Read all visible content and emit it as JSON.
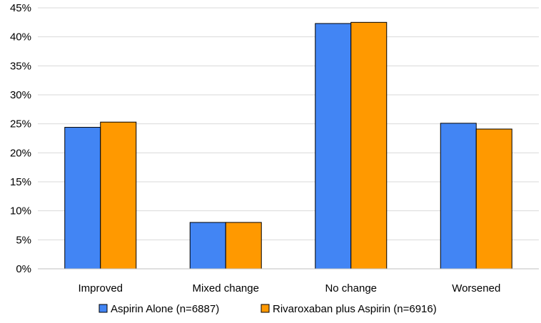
{
  "chart_data": {
    "type": "bar",
    "categories": [
      "Improved",
      "Mixed change",
      "No change",
      "Worsened"
    ],
    "series": [
      {
        "name": "Aspirin Alone (n=6887)",
        "values": [
          24.4,
          8.0,
          42.3,
          25.1
        ],
        "color": "#4285F4"
      },
      {
        "name": "Rivaroxaban plus Aspirin (n=6916)",
        "values": [
          25.3,
          8.0,
          42.5,
          24.1
        ],
        "color": "#FF9900"
      }
    ],
    "ylim": [
      0,
      45
    ],
    "yticks": [
      "0%",
      "5%",
      "10%",
      "15%",
      "20%",
      "25%",
      "30%",
      "35%",
      "40%",
      "45%"
    ],
    "grid": true,
    "legend_position": "bottom"
  }
}
